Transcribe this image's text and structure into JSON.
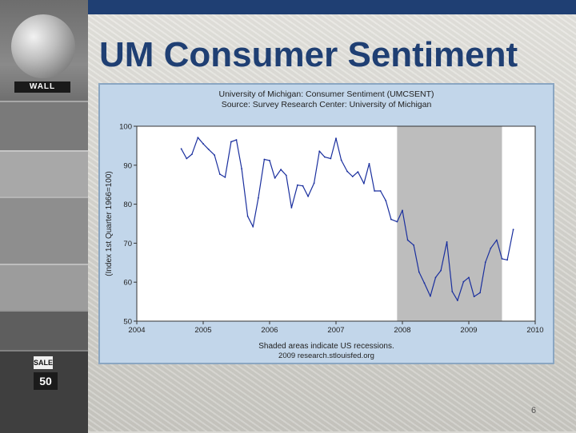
{
  "slide": {
    "title": "UM Consumer Sentiment",
    "page_number": "6"
  },
  "collage": {
    "wall_sign": "WALL",
    "sale_text": "SALE",
    "discount_text": "50"
  },
  "chart_data": {
    "type": "line",
    "title": "University of Michigan: Consumer Sentiment (UMCSENT)",
    "subtitle": "Source: Survey Research Center: University of Michigan",
    "xlabel": "",
    "ylabel": "(Index 1st Quarter 1966=100)",
    "xlim": [
      2004,
      2010
    ],
    "ylim": [
      50,
      100
    ],
    "x_ticks": [
      "2004",
      "2005",
      "2006",
      "2007",
      "2008",
      "2009",
      "2010"
    ],
    "y_ticks": [
      "100",
      "90",
      "80",
      "70",
      "60",
      "50"
    ],
    "recessions": [
      [
        2007.92,
        2009.5
      ]
    ],
    "footnote": "Shaded areas indicate US recessions.",
    "copyright": "2009 research.stlouisfed.org",
    "line_color": "#1a2f9e",
    "recession_color": "#bdbdbd",
    "series": [
      {
        "points": [
          [
            2004.67,
            94.2
          ],
          [
            2004.75,
            91.7
          ],
          [
            2004.83,
            92.8
          ],
          [
            2004.92,
            97.1
          ],
          [
            2005.0,
            95.5
          ],
          [
            2005.08,
            94.1
          ],
          [
            2005.17,
            92.6
          ],
          [
            2005.25,
            87.7
          ],
          [
            2005.33,
            86.9
          ],
          [
            2005.42,
            96.0
          ],
          [
            2005.5,
            96.5
          ],
          [
            2005.58,
            89.1
          ],
          [
            2005.67,
            76.9
          ],
          [
            2005.75,
            74.2
          ],
          [
            2005.83,
            81.6
          ],
          [
            2005.92,
            91.5
          ],
          [
            2006.0,
            91.2
          ],
          [
            2006.08,
            86.7
          ],
          [
            2006.17,
            88.9
          ],
          [
            2006.25,
            87.4
          ],
          [
            2006.33,
            79.1
          ],
          [
            2006.42,
            84.9
          ],
          [
            2006.5,
            84.7
          ],
          [
            2006.58,
            82.0
          ],
          [
            2006.67,
            85.4
          ],
          [
            2006.75,
            93.6
          ],
          [
            2006.83,
            92.1
          ],
          [
            2006.92,
            91.7
          ],
          [
            2007.0,
            96.9
          ],
          [
            2007.08,
            91.3
          ],
          [
            2007.17,
            88.4
          ],
          [
            2007.25,
            87.1
          ],
          [
            2007.33,
            88.3
          ],
          [
            2007.42,
            85.3
          ],
          [
            2007.5,
            90.4
          ],
          [
            2007.58,
            83.4
          ],
          [
            2007.67,
            83.4
          ],
          [
            2007.75,
            80.9
          ],
          [
            2007.83,
            76.1
          ],
          [
            2007.92,
            75.5
          ],
          [
            2008.0,
            78.4
          ],
          [
            2008.08,
            70.8
          ],
          [
            2008.17,
            69.5
          ],
          [
            2008.25,
            62.6
          ],
          [
            2008.33,
            59.8
          ],
          [
            2008.42,
            56.4
          ],
          [
            2008.5,
            61.2
          ],
          [
            2008.58,
            63.0
          ],
          [
            2008.67,
            70.3
          ],
          [
            2008.75,
            57.6
          ],
          [
            2008.83,
            55.3
          ],
          [
            2008.92,
            60.1
          ],
          [
            2009.0,
            61.2
          ],
          [
            2009.08,
            56.3
          ],
          [
            2009.17,
            57.3
          ],
          [
            2009.25,
            65.1
          ],
          [
            2009.33,
            68.7
          ],
          [
            2009.42,
            70.8
          ],
          [
            2009.5,
            66.0
          ],
          [
            2009.58,
            65.7
          ],
          [
            2009.67,
            73.5
          ]
        ]
      }
    ]
  }
}
